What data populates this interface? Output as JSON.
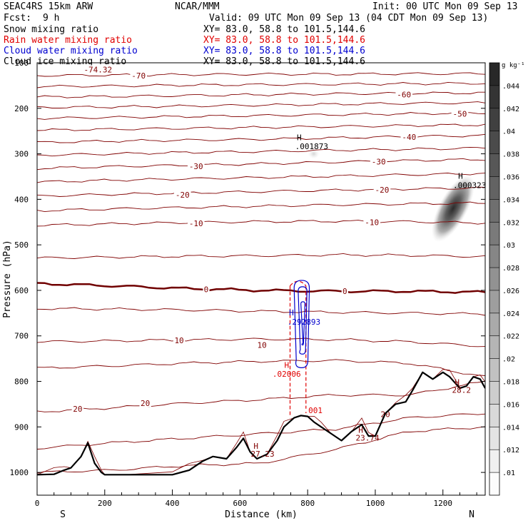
{
  "header": {
    "model": "SEAC4RS 15km ARW",
    "center": "NCAR/MMM",
    "init": "Init: 00 UTC Mon 09 Sep 13",
    "fcst_label": "Fcst:",
    "fcst_value": "9 h",
    "valid": "Valid: 09 UTC Mon 09 Sep 13 (04 CDT Mon 09 Sep 13)",
    "fields": [
      {
        "name": "Snow mixing ratio",
        "xy": "XY=  83.0, 58.8 to 101.5,144.6",
        "color": "#000000"
      },
      {
        "name": "Rain water mixing ratio",
        "xy": "XY=  83.0, 58.8 to 101.5,144.6",
        "color": "#e00000"
      },
      {
        "name": "Cloud water mixing ratio",
        "xy": "XY=  83.0, 58.8 to 101.5,144.6",
        "color": "#0000d0"
      },
      {
        "name": "Cloud ice mixing ratio",
        "xy": "XY=  83.0, 58.8 to 101.5,144.6",
        "color": "#000000"
      }
    ]
  },
  "chart_data": {
    "type": "cross-section",
    "xlabel": "Distance (km)",
    "ylabel": "Pressure (hPa)",
    "xlim": [
      0,
      1325
    ],
    "ylim": [
      1050,
      100
    ],
    "xticks": [
      0,
      200,
      400,
      600,
      800,
      1000,
      1200
    ],
    "yticks": [
      100,
      200,
      300,
      400,
      500,
      600,
      700,
      800,
      900,
      1000
    ],
    "x_end_labels": {
      "left": "S",
      "right": "N"
    },
    "temperature_contours": {
      "color": "#800000",
      "zero_color": "#700000",
      "interval": 5,
      "lines": [
        {
          "t": -70,
          "p": [
            128,
            127,
            126,
            125,
            125,
            124,
            124
          ]
        },
        {
          "t": -65,
          "p": [
            152,
            151,
            149,
            148,
            147,
            146,
            145
          ]
        },
        {
          "t": -60,
          "p": [
            175,
            174,
            172,
            170,
            168,
            167,
            166
          ]
        },
        {
          "t": -55,
          "p": [
            198,
            197,
            195,
            193,
            191,
            189,
            188
          ]
        },
        {
          "t": -50,
          "p": [
            222,
            220,
            218,
            216,
            214,
            212,
            210
          ]
        },
        {
          "t": -45,
          "p": [
            248,
            246,
            244,
            242,
            240,
            238,
            236
          ]
        },
        {
          "t": -40,
          "p": [
            275,
            272,
            270,
            268,
            265,
            262,
            260
          ]
        },
        {
          "t": -35,
          "p": [
            303,
            300,
            297,
            295,
            292,
            290,
            287
          ]
        },
        {
          "t": -30,
          "p": [
            332,
            328,
            325,
            322,
            318,
            315,
            312
          ]
        },
        {
          "t": -25,
          "p": [
            362,
            358,
            355,
            352,
            349,
            346,
            343
          ]
        },
        {
          "t": -20,
          "p": [
            393,
            389,
            386,
            383,
            380,
            377,
            375
          ]
        },
        {
          "t": -15,
          "p": [
            425,
            421,
            418,
            415,
            412,
            410,
            408
          ]
        },
        {
          "t": -10,
          "p": [
            457,
            454,
            451,
            449,
            448,
            449,
            452
          ]
        },
        {
          "t": -5,
          "p": [
            529,
            527,
            525,
            524,
            522,
            523,
            526
          ]
        },
        {
          "t": 0,
          "p": [
            585,
            590,
            596,
            600,
            602,
            602,
            604
          ]
        },
        {
          "t": 5,
          "p": [
            640,
            641,
            643,
            646,
            648,
            650,
            652
          ]
        },
        {
          "t": 10,
          "p": [
            713,
            711,
            709,
            707,
            708,
            713,
            723
          ]
        },
        {
          "t": 15,
          "p": [
            771,
            766,
            760,
            756,
            754,
            760,
            790
          ]
        },
        {
          "t": 20,
          "p": [
            867,
            858,
            848,
            840,
            830,
            830,
            800
          ]
        },
        {
          "t": 25,
          "p": [
            947,
            935,
            925,
            915,
            905,
            880,
            870
          ]
        },
        {
          "t": 30,
          "p": [
            1000,
            995,
            985,
            980,
            950,
            910,
            900
          ]
        }
      ],
      "labels": [
        {
          "text": "-74.32",
          "x": 180,
          "p": 115
        },
        {
          "text": "-70",
          "x": 300,
          "p": 128
        },
        {
          "text": "-60",
          "x": 1085,
          "p": 170
        },
        {
          "text": "-50",
          "x": 1250,
          "p": 212
        },
        {
          "text": "-40",
          "x": 1100,
          "p": 263
        },
        {
          "text": "-30",
          "x": 470,
          "p": 327
        },
        {
          "text": "-30",
          "x": 1010,
          "p": 317
        },
        {
          "text": "-20",
          "x": 430,
          "p": 390
        },
        {
          "text": "-20",
          "x": 1020,
          "p": 379
        },
        {
          "text": "-10",
          "x": 470,
          "p": 453
        },
        {
          "text": "-10",
          "x": 990,
          "p": 450
        },
        {
          "text": "0",
          "x": 500,
          "p": 598
        },
        {
          "text": "0",
          "x": 910,
          "p": 602
        },
        {
          "text": "10",
          "x": 420,
          "p": 710
        },
        {
          "text": "10",
          "x": 665,
          "p": 720
        },
        {
          "text": "20",
          "x": 120,
          "p": 860
        },
        {
          "text": "20",
          "x": 320,
          "p": 848
        },
        {
          "text": "20",
          "x": 1030,
          "p": 872
        }
      ]
    },
    "terrain": {
      "x": [
        0,
        50,
        80,
        100,
        130,
        150,
        170,
        190,
        200,
        260,
        400,
        450,
        490,
        520,
        560,
        590,
        610,
        630,
        650,
        680,
        710,
        730,
        760,
        780,
        800,
        820,
        840,
        870,
        900,
        930,
        960,
        980,
        1000,
        1030,
        1060,
        1090,
        1110,
        1140,
        1170,
        1200,
        1220,
        1250,
        1270,
        1290,
        1310,
        1325
      ],
      "p": [
        1005,
        1004,
        995,
        990,
        965,
        935,
        980,
        1000,
        1005,
        1005,
        1005,
        995,
        975,
        965,
        970,
        945,
        925,
        955,
        970,
        960,
        930,
        900,
        880,
        875,
        877,
        890,
        900,
        915,
        930,
        910,
        895,
        920,
        920,
        870,
        850,
        845,
        820,
        780,
        795,
        780,
        790,
        815,
        810,
        790,
        795,
        815
      ]
    },
    "terrain_smooth_offset": 15,
    "cloud_water": {
      "color": "#0000cc",
      "contours": [
        {
          "x0": 760,
          "x1": 805,
          "ptop": 578,
          "pbot": 770
        },
        {
          "x0": 772,
          "x1": 798,
          "ptop": 592,
          "pbot": 740
        },
        {
          "x0": 780,
          "x1": 792,
          "ptop": 625,
          "pbot": 720
        }
      ],
      "high_label": "H",
      "high_value": ".292893",
      "high_x": 745,
      "high_p": 670
    },
    "rain_water": {
      "color": "#e00000",
      "lines": [
        {
          "x": 748,
          "ptop": 590,
          "pbot": 875
        },
        {
          "x": 795,
          "ptop": 590,
          "pbot": 860
        }
      ],
      "high_label": "H",
      "high_value": ".02006",
      "high_x": 728,
      "high_p": 785,
      "low_value": ".001",
      "low_x": 788,
      "low_p": 870
    },
    "snow_max": {
      "label": "H",
      "value": ".001873",
      "x": 768,
      "p": 285
    },
    "cloud_ice_max": {
      "label": "H",
      "value": ".000323",
      "x": 1235,
      "p": 370
    },
    "terrain_highs": [
      {
        "label": "H",
        "value": "27.23",
        "x": 640,
        "p": 960
      },
      {
        "label": "H",
        "value": "23.74",
        "x": 950,
        "p": 925
      },
      {
        "label": "H",
        "value": "28.2",
        "x": 1235,
        "p": 820
      }
    ],
    "colorbar": {
      "unit": "g kg⁻¹",
      "ticks": [
        ".044",
        ".042",
        ".04",
        ".038",
        ".036",
        ".034",
        ".032",
        ".03",
        ".028",
        ".026",
        ".024",
        ".022",
        ".02",
        ".018",
        ".016",
        ".014",
        ".012",
        ".01"
      ]
    }
  }
}
